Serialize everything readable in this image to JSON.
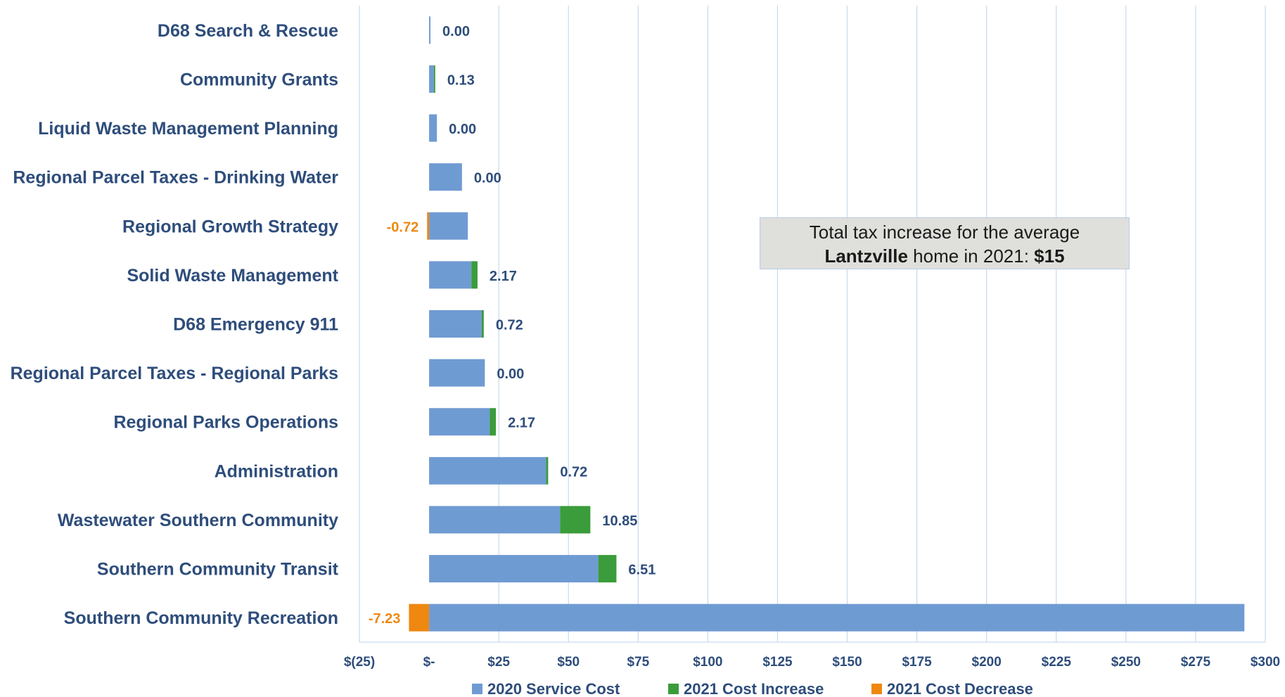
{
  "chart_data": {
    "type": "bar",
    "orientation": "horizontal",
    "stacked": true,
    "categories": [
      "D68 Search & Rescue",
      "Community Grants",
      "Liquid Waste Management Planning",
      "Regional Parcel Taxes - Drinking Water",
      "Regional Growth Strategy",
      "Solid Waste Management",
      "D68 Emergency 911",
      "Regional Parcel Taxes - Regional Parks",
      "Regional Parks Operations",
      "Administration",
      "Wastewater Southern Community",
      "Southern Community Transit",
      "Southern Community Recreation"
    ],
    "series": [
      {
        "name": "2020 Service Cost",
        "color": "#6f9bd3",
        "values": [
          0.5,
          1.7,
          2.8,
          11.8,
          13.9,
          15.2,
          18.9,
          20.0,
          21.8,
          42.0,
          47.0,
          60.7,
          292.5
        ]
      },
      {
        "name": "2021 Cost Increase",
        "color": "#3a9c3a",
        "values": [
          0,
          0.13,
          0,
          0,
          0,
          2.17,
          0.72,
          0,
          2.17,
          0.72,
          10.85,
          6.51,
          0
        ]
      },
      {
        "name": "2021 Cost Decrease",
        "color": "#ee8811",
        "values": [
          0,
          0,
          0,
          0,
          -0.72,
          0,
          0,
          0,
          0,
          0,
          0,
          0,
          -7.23
        ]
      }
    ],
    "data_labels": [
      "0.00",
      "0.13",
      "0.00",
      "0.00",
      "-0.72",
      "2.17",
      "0.72",
      "0.00",
      "2.17",
      "0.72",
      "10.85",
      "6.51",
      "-7.23"
    ],
    "data_label_kind": [
      "increase",
      "increase",
      "increase",
      "increase",
      "decrease",
      "increase",
      "increase",
      "increase",
      "increase",
      "increase",
      "increase",
      "increase",
      "decrease"
    ],
    "xlim": [
      -25,
      300
    ],
    "x_ticks": [
      -25,
      0,
      25,
      50,
      75,
      100,
      125,
      150,
      175,
      200,
      225,
      250,
      275,
      300
    ],
    "x_tick_labels": [
      "$(25)",
      "$-",
      "$25",
      "$50",
      "$75",
      "$100",
      "$125",
      "$150",
      "$175",
      "$200",
      "$225",
      "$250",
      "$275",
      "$300"
    ],
    "title": "",
    "xlabel": "",
    "ylabel": "",
    "grid": "vertical",
    "legend_position": "bottom",
    "label_color": "#2e4d7b",
    "decrease_label_color": "#ee8811"
  },
  "annotation": {
    "line1": "Total tax increase for the average",
    "line2_bold": "Lantzville",
    "line2_mid": " home in 2021: ",
    "line2_value": "$15"
  }
}
